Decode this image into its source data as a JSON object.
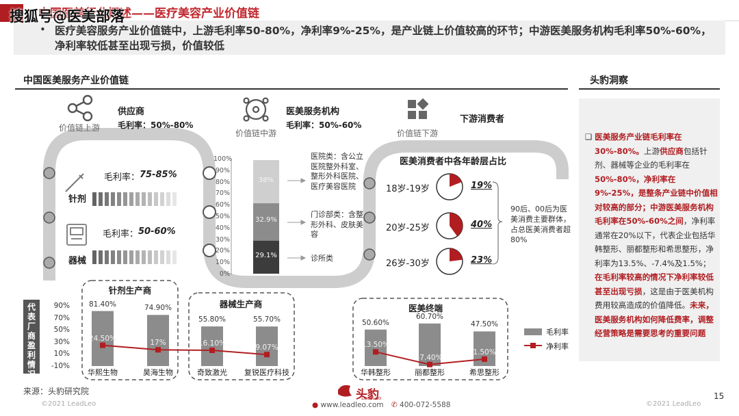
{
  "watermark": "搜狐号@医美部落",
  "page_title": "中国医美行业概述——医疗美容产业价值链",
  "summary": "医疗美容服务产业价值链中，上游毛利率50-80%，净利率9%-25%，是产业链上价值较高的环节；中游医美服务机构毛利率50%-60%，净利率较低甚至出现亏损，价值较低",
  "section_left": "中国医美服务产业价值链",
  "section_right": "头豹洞察",
  "chain": {
    "upstream": {
      "tag": "价值链上游",
      "name": "供应商",
      "margin": "毛利率：50%-80%"
    },
    "midstream": {
      "tag": "价值链中游",
      "name": "医美服务机构",
      "margin": "毛利率：50%-60%"
    },
    "downstream": {
      "tag": "价值链下游",
      "name": "下游消费者"
    }
  },
  "supply": {
    "needle": {
      "name": "针剂",
      "margin_label": "毛利率：",
      "margin": "75-85%"
    },
    "device": {
      "name": "器械",
      "margin_label": "毛利率：",
      "margin": "50-60%"
    }
  },
  "stack": {
    "ticks": [
      "100%",
      "90%",
      "80%",
      "70%",
      "60%",
      "50%",
      "40%",
      "30%",
      "20%",
      "10%",
      "0%"
    ],
    "segments": [
      {
        "label": "38%",
        "value": 38,
        "color": "#cfcfcf",
        "desc": "医院类：含公立医院整外科室、整形外科医院、医疗美容医院"
      },
      {
        "label": "32.9%",
        "value": 32.9,
        "color": "#8c8c8c",
        "desc": "门诊部类：含整形外科、皮肤美容"
      },
      {
        "label": "29.1%",
        "value": 29.1,
        "color": "#3c3c3c",
        "desc": "诊所类"
      }
    ]
  },
  "age": {
    "title": "医美消费者中各年龄层占比",
    "groups": [
      {
        "label": "18岁-19岁",
        "pct_label": "19%",
        "value": 19
      },
      {
        "label": "20岁-25岁",
        "pct_label": "40%",
        "value": 40
      },
      {
        "label": "26岁-30岁",
        "pct_label": "23%",
        "value": 23
      }
    ],
    "note": "90后、00后为医美消费主要群体，占总医美消费者超80%"
  },
  "profit_chart": {
    "ylabel": "代表厂商盈利情况",
    "yticks": [
      "90%",
      "70%",
      "50%",
      "30%",
      "10%",
      "-10%"
    ],
    "groups": [
      {
        "title": "针剂生产商",
        "companies": [
          "华熙生物",
          "昊海生物"
        ]
      },
      {
        "title": "器械生产商",
        "companies": [
          "奇致激光",
          "复锐医疗科技"
        ]
      },
      {
        "title": "医美终端",
        "companies": [
          "华韩整形",
          "丽都整形",
          "希思整形"
        ]
      }
    ],
    "legend": {
      "gross": "毛利率",
      "net": "净利率"
    }
  },
  "chart_data": {
    "type": "bar",
    "categories": [
      "华熙生物",
      "昊海生物",
      "奇致激光",
      "复锐医疗科技",
      "华韩整形",
      "丽都整形",
      "希思整形"
    ],
    "series": [
      {
        "name": "毛利率",
        "values": [
          81.4,
          74.9,
          55.8,
          55.7,
          50.6,
          60.7,
          47.5
        ],
        "labels": [
          "81.40%",
          "74.90%",
          "55.80%",
          "55.70%",
          "50.60%",
          "60.70%",
          "47.50%"
        ],
        "color": "#8c8c8c"
      },
      {
        "name": "净利率",
        "values": [
          24.5,
          17,
          16.1,
          9.07,
          13.5,
          -7.4,
          1.5
        ],
        "labels": [
          "24.50%",
          "17%",
          "16.10%",
          "9.07%",
          "13.50%",
          "-7.40%",
          "1.50%"
        ],
        "color": "#b11e22"
      }
    ],
    "ylim": [
      -10,
      90
    ],
    "ylabel": "代表厂商盈利情况",
    "legend": "right"
  },
  "insight": {
    "bullet": "❑",
    "parts": [
      {
        "t": "医美服务产业链毛利率在30%-80%。",
        "hl": true
      },
      {
        "t": "上游",
        "hl": false
      },
      {
        "t": "供应商",
        "hl": true
      },
      {
        "t": "包括针剂、器械等企业的毛利率在",
        "hl": false
      },
      {
        "t": "50%-80%，净利率在9%-25%，是整条产业链中价值相对较高的部分；中游医美服务机构毛利率在50%-60%之间",
        "hl": true
      },
      {
        "t": "，净利率通常在20%以下，代表企业包括华韩整形、丽都整形和希思整形，净利率为13.5%、-7.4%及1.5%；",
        "hl": false
      },
      {
        "t": "在毛利率较高的情况下净利率较低甚至出现亏损",
        "hl": true
      },
      {
        "t": "，这是由于医美机构费用较高造成的价值降低。",
        "hl": false
      },
      {
        "t": "未来，医美服务机构如何降低费率，调整经营策略是需要思考的重要问题",
        "hl": true
      }
    ]
  },
  "footer": {
    "source": "来源：头豹研究院",
    "copyright": "©2021 LeadLeo",
    "site": "www.leadleo.com",
    "phone": "400-072-5588",
    "logo": "头豹",
    "logo_sub": "LeadLeo",
    "page": "15"
  }
}
